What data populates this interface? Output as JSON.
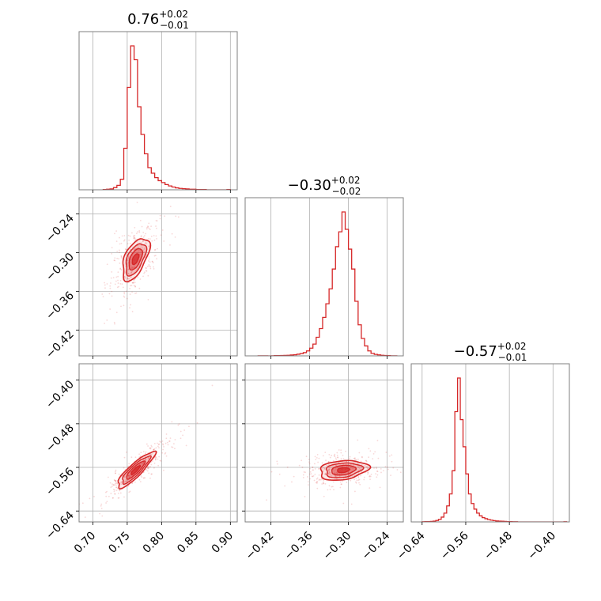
{
  "chart_data": {
    "type": "corner",
    "color": "#d62728",
    "parameters": [
      {
        "id": "p1",
        "ticks": [
          "0.70",
          "0.75",
          "0.80",
          "0.85",
          "0.90"
        ],
        "range": [
          0.68,
          0.91
        ],
        "median": 0.76,
        "title": {
          "value": "0.76",
          "plus": "+0.02",
          "minus": "−0.01"
        }
      },
      {
        "id": "p2",
        "ticks": [
          "−0.42",
          "−0.36",
          "−0.30",
          "−0.24"
        ],
        "range": [
          -0.46,
          -0.215
        ],
        "median": -0.3,
        "title": {
          "value": "−0.30",
          "plus": "+0.02",
          "minus": "−0.02"
        }
      },
      {
        "id": "p3",
        "ticks": [
          "−0.64",
          "−0.56",
          "−0.48",
          "−0.40"
        ],
        "range": [
          -0.66,
          -0.37
        ],
        "median": -0.57,
        "title": {
          "value": "−0.57",
          "plus": "+0.02",
          "minus": "−0.01"
        }
      }
    ],
    "histograms": [
      {
        "param": "p1",
        "bins": [
          {
            "x0": 0.715,
            "x1": 0.72,
            "n": 1
          },
          {
            "x0": 0.72,
            "x1": 0.725,
            "n": 2
          },
          {
            "x0": 0.725,
            "x1": 0.73,
            "n": 3
          },
          {
            "x0": 0.73,
            "x1": 0.735,
            "n": 8
          },
          {
            "x0": 0.735,
            "x1": 0.74,
            "n": 16
          },
          {
            "x0": 0.74,
            "x1": 0.745,
            "n": 38
          },
          {
            "x0": 0.745,
            "x1": 0.75,
            "n": 150
          },
          {
            "x0": 0.75,
            "x1": 0.755,
            "n": 370
          },
          {
            "x0": 0.755,
            "x1": 0.76,
            "n": 520
          },
          {
            "x0": 0.76,
            "x1": 0.765,
            "n": 470
          },
          {
            "x0": 0.765,
            "x1": 0.77,
            "n": 300
          },
          {
            "x0": 0.77,
            "x1": 0.775,
            "n": 200
          },
          {
            "x0": 0.775,
            "x1": 0.78,
            "n": 130
          },
          {
            "x0": 0.78,
            "x1": 0.785,
            "n": 80
          },
          {
            "x0": 0.785,
            "x1": 0.79,
            "n": 60
          },
          {
            "x0": 0.79,
            "x1": 0.795,
            "n": 44
          },
          {
            "x0": 0.795,
            "x1": 0.8,
            "n": 33
          },
          {
            "x0": 0.8,
            "x1": 0.805,
            "n": 26
          },
          {
            "x0": 0.805,
            "x1": 0.81,
            "n": 19
          },
          {
            "x0": 0.81,
            "x1": 0.815,
            "n": 14
          },
          {
            "x0": 0.815,
            "x1": 0.82,
            "n": 10
          },
          {
            "x0": 0.82,
            "x1": 0.825,
            "n": 7
          },
          {
            "x0": 0.825,
            "x1": 0.83,
            "n": 5
          },
          {
            "x0": 0.83,
            "x1": 0.835,
            "n": 4
          },
          {
            "x0": 0.835,
            "x1": 0.84,
            "n": 3
          },
          {
            "x0": 0.84,
            "x1": 0.845,
            "n": 2
          },
          {
            "x0": 0.845,
            "x1": 0.85,
            "n": 2
          },
          {
            "x0": 0.85,
            "x1": 0.855,
            "n": 1
          },
          {
            "x0": 0.855,
            "x1": 0.86,
            "n": 1
          },
          {
            "x0": 0.86,
            "x1": 0.865,
            "n": 1
          },
          {
            "x0": 0.895,
            "x1": 0.9,
            "n": 1
          }
        ]
      },
      {
        "param": "p2",
        "bins": [
          {
            "x0": -0.44,
            "x1": -0.435,
            "n": 1
          },
          {
            "x0": -0.435,
            "x1": -0.43,
            "n": 1
          },
          {
            "x0": -0.43,
            "x1": -0.425,
            "n": 1
          },
          {
            "x0": -0.42,
            "x1": -0.415,
            "n": 1
          },
          {
            "x0": -0.415,
            "x1": -0.41,
            "n": 2
          },
          {
            "x0": -0.41,
            "x1": -0.405,
            "n": 2
          },
          {
            "x0": -0.405,
            "x1": -0.4,
            "n": 3
          },
          {
            "x0": -0.4,
            "x1": -0.395,
            "n": 4
          },
          {
            "x0": -0.395,
            "x1": -0.39,
            "n": 5
          },
          {
            "x0": -0.39,
            "x1": -0.385,
            "n": 7
          },
          {
            "x0": -0.385,
            "x1": -0.38,
            "n": 9
          },
          {
            "x0": -0.38,
            "x1": -0.375,
            "n": 13
          },
          {
            "x0": -0.375,
            "x1": -0.37,
            "n": 18
          },
          {
            "x0": -0.37,
            "x1": -0.365,
            "n": 26
          },
          {
            "x0": -0.365,
            "x1": -0.36,
            "n": 40
          },
          {
            "x0": -0.36,
            "x1": -0.355,
            "n": 62
          },
          {
            "x0": -0.355,
            "x1": -0.35,
            "n": 95
          },
          {
            "x0": -0.35,
            "x1": -0.345,
            "n": 150
          },
          {
            "x0": -0.345,
            "x1": -0.34,
            "n": 220
          },
          {
            "x0": -0.34,
            "x1": -0.335,
            "n": 310
          },
          {
            "x0": -0.335,
            "x1": -0.33,
            "n": 420
          },
          {
            "x0": -0.33,
            "x1": -0.325,
            "n": 540
          },
          {
            "x0": -0.325,
            "x1": -0.32,
            "n": 700
          },
          {
            "x0": -0.32,
            "x1": -0.315,
            "n": 880
          },
          {
            "x0": -0.315,
            "x1": -0.31,
            "n": 1000
          },
          {
            "x0": -0.31,
            "x1": -0.305,
            "n": 1160
          },
          {
            "x0": -0.305,
            "x1": -0.3,
            "n": 1020
          },
          {
            "x0": -0.3,
            "x1": -0.295,
            "n": 860
          },
          {
            "x0": -0.295,
            "x1": -0.29,
            "n": 700
          },
          {
            "x0": -0.29,
            "x1": -0.285,
            "n": 440
          },
          {
            "x0": -0.285,
            "x1": -0.28,
            "n": 250
          },
          {
            "x0": -0.28,
            "x1": -0.275,
            "n": 140
          },
          {
            "x0": -0.275,
            "x1": -0.27,
            "n": 80
          },
          {
            "x0": -0.27,
            "x1": -0.265,
            "n": 40
          },
          {
            "x0": -0.265,
            "x1": -0.26,
            "n": 20
          },
          {
            "x0": -0.26,
            "x1": -0.255,
            "n": 12
          },
          {
            "x0": -0.255,
            "x1": -0.25,
            "n": 8
          },
          {
            "x0": -0.25,
            "x1": -0.245,
            "n": 5
          },
          {
            "x0": -0.245,
            "x1": -0.24,
            "n": 3
          },
          {
            "x0": -0.24,
            "x1": -0.235,
            "n": 2
          },
          {
            "x0": -0.235,
            "x1": -0.23,
            "n": 1
          },
          {
            "x0": -0.23,
            "x1": -0.225,
            "n": 1
          }
        ]
      },
      {
        "param": "p3",
        "bins": [
          {
            "x0": -0.64,
            "x1": -0.635,
            "n": 1
          },
          {
            "x0": -0.635,
            "x1": -0.63,
            "n": 2
          },
          {
            "x0": -0.63,
            "x1": -0.625,
            "n": 2
          },
          {
            "x0": -0.625,
            "x1": -0.62,
            "n": 3
          },
          {
            "x0": -0.62,
            "x1": -0.615,
            "n": 5
          },
          {
            "x0": -0.615,
            "x1": -0.61,
            "n": 9
          },
          {
            "x0": -0.61,
            "x1": -0.605,
            "n": 16
          },
          {
            "x0": -0.605,
            "x1": -0.6,
            "n": 30
          },
          {
            "x0": -0.6,
            "x1": -0.595,
            "n": 55
          },
          {
            "x0": -0.595,
            "x1": -0.59,
            "n": 100
          },
          {
            "x0": -0.59,
            "x1": -0.585,
            "n": 175
          },
          {
            "x0": -0.585,
            "x1": -0.58,
            "n": 320
          },
          {
            "x0": -0.58,
            "x1": -0.575,
            "n": 690
          },
          {
            "x0": -0.575,
            "x1": -0.57,
            "n": 900
          },
          {
            "x0": -0.57,
            "x1": -0.565,
            "n": 640
          },
          {
            "x0": -0.565,
            "x1": -0.56,
            "n": 470
          },
          {
            "x0": -0.56,
            "x1": -0.555,
            "n": 300
          },
          {
            "x0": -0.555,
            "x1": -0.55,
            "n": 175
          },
          {
            "x0": -0.55,
            "x1": -0.545,
            "n": 115
          },
          {
            "x0": -0.545,
            "x1": -0.54,
            "n": 80
          },
          {
            "x0": -0.54,
            "x1": -0.535,
            "n": 55
          },
          {
            "x0": -0.535,
            "x1": -0.53,
            "n": 38
          },
          {
            "x0": -0.53,
            "x1": -0.525,
            "n": 27
          },
          {
            "x0": -0.525,
            "x1": -0.52,
            "n": 20
          },
          {
            "x0": -0.52,
            "x1": -0.515,
            "n": 15
          },
          {
            "x0": -0.515,
            "x1": -0.51,
            "n": 11
          },
          {
            "x0": -0.51,
            "x1": -0.505,
            "n": 8
          },
          {
            "x0": -0.505,
            "x1": -0.5,
            "n": 6
          },
          {
            "x0": -0.5,
            "x1": -0.495,
            "n": 5
          },
          {
            "x0": -0.495,
            "x1": -0.49,
            "n": 4
          },
          {
            "x0": -0.49,
            "x1": -0.485,
            "n": 3
          },
          {
            "x0": -0.485,
            "x1": -0.48,
            "n": 2
          },
          {
            "x0": -0.48,
            "x1": -0.475,
            "n": 2
          },
          {
            "x0": -0.475,
            "x1": -0.47,
            "n": 1
          },
          {
            "x0": -0.47,
            "x1": -0.465,
            "n": 1
          },
          {
            "x0": -0.38,
            "x1": -0.375,
            "n": 1
          }
        ]
      }
    ],
    "density_2d": [
      {
        "x": "p1",
        "y": "p2",
        "center": [
          0.762,
          -0.31
        ],
        "sigma_x": 0.013,
        "sigma_y": 0.022,
        "rho": 0.55
      },
      {
        "x": "p1",
        "y": "p3",
        "center": [
          0.762,
          -0.565
        ],
        "sigma_x": 0.018,
        "sigma_y": 0.022,
        "rho": 0.88
      },
      {
        "x": "p2",
        "y": "p3",
        "center": [
          -0.308,
          -0.565
        ],
        "sigma_x": 0.025,
        "sigma_y": 0.012,
        "rho": 0.25
      }
    ],
    "grid": true,
    "legend": "none"
  }
}
